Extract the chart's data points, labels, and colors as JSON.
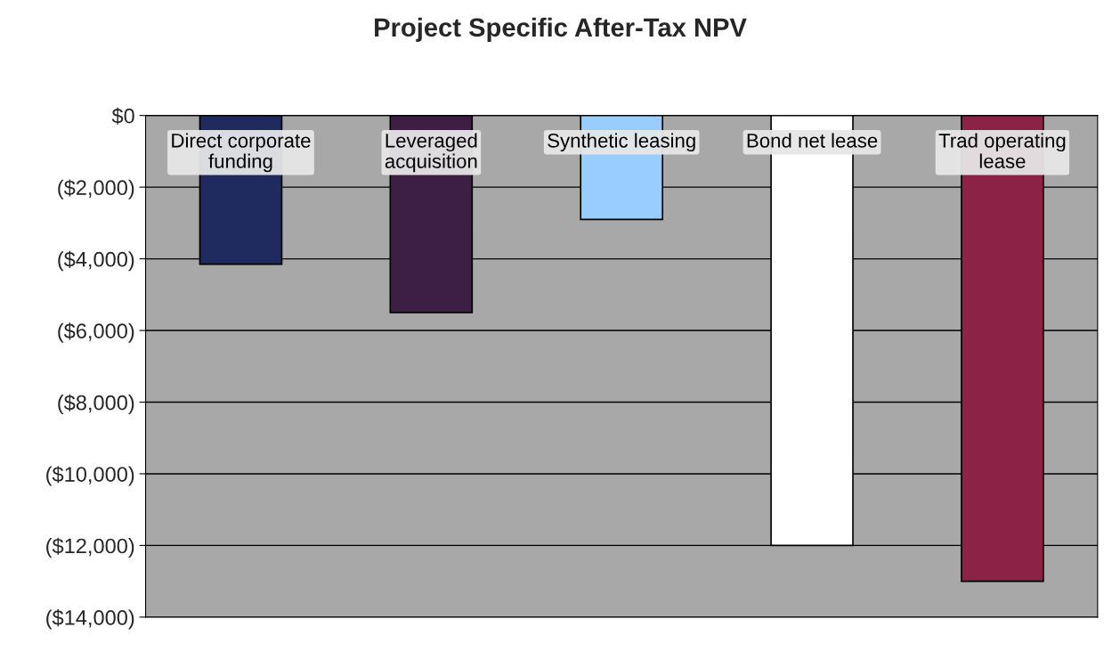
{
  "chart_data": {
    "type": "bar",
    "title": "Project Specific After-Tax NPV",
    "categories": [
      "Direct corporate funding",
      "Leveraged acquisition",
      "Synthetic leasing",
      "Bond net lease",
      "Trad operating lease"
    ],
    "values": [
      -4150,
      -5500,
      -2900,
      -12000,
      -13000
    ],
    "colors": [
      "#1f2a5e",
      "#3d1f45",
      "#99ccff",
      "#ffffff",
      "#8b2346"
    ],
    "ylim": [
      -14000,
      0
    ],
    "yticks": [
      {
        "value": 0,
        "label": "$0"
      },
      {
        "value": -2000,
        "label": "($2,000)"
      },
      {
        "value": -4000,
        "label": "($4,000)"
      },
      {
        "value": -6000,
        "label": "($6,000)"
      },
      {
        "value": -8000,
        "label": "($8,000)"
      },
      {
        "value": -10000,
        "label": "($10,000)"
      },
      {
        "value": -12000,
        "label": "($12,000)"
      },
      {
        "value": -14000,
        "label": "($14,000)"
      }
    ],
    "grid": "y",
    "legend": false
  }
}
